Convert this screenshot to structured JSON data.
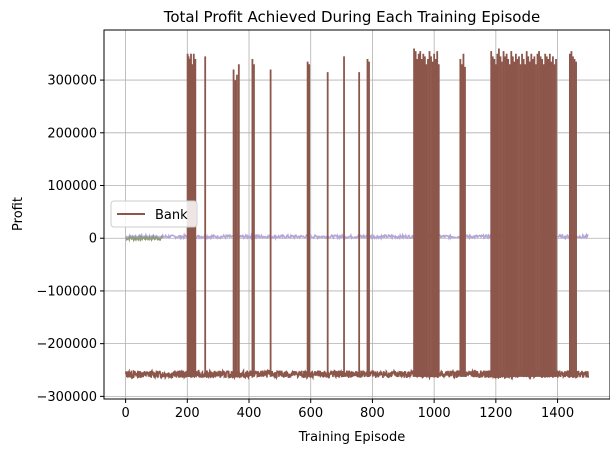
{
  "chart_data": {
    "type": "line",
    "title": "Total Profit Achieved During Each Training Episode",
    "xlabel": "Training Episode",
    "ylabel": "Profit",
    "xlim": [
      -70,
      1570
    ],
    "ylim": [
      -305000,
      395000
    ],
    "grid": true,
    "legend_position": "center-left",
    "x_ticks": [
      0,
      200,
      400,
      600,
      800,
      1000,
      1200,
      1400
    ],
    "x_tick_labels": [
      "0",
      "200",
      "400",
      "600",
      "800",
      "1000",
      "1200",
      "1400"
    ],
    "y_ticks": [
      -300000,
      -200000,
      -100000,
      0,
      100000,
      200000,
      300000
    ],
    "y_tick_labels": [
      "−300000",
      "−200000",
      "−100000",
      "0",
      "100000",
      "200000",
      "300000"
    ],
    "series": [
      {
        "name": "Bank",
        "color": "#8c564b",
        "baseline": -258000,
        "x_range": [
          0,
          1500
        ],
        "spike_episodes": [
          201,
          204,
          208,
          212,
          216,
          221,
          226,
          258,
          350,
          356,
          361,
          367,
          411,
          416,
          470,
          590,
          595,
          655,
          708,
          757,
          784,
          789,
          935,
          940,
          945,
          950,
          955,
          960,
          965,
          970,
          975,
          980,
          985,
          990,
          995,
          1000,
          1005,
          1010,
          1015,
          1085,
          1090,
          1095,
          1100,
          1185,
          1190,
          1195,
          1200,
          1205,
          1210,
          1215,
          1220,
          1225,
          1230,
          1235,
          1240,
          1245,
          1250,
          1255,
          1260,
          1265,
          1270,
          1275,
          1280,
          1285,
          1290,
          1295,
          1300,
          1305,
          1310,
          1315,
          1320,
          1325,
          1330,
          1335,
          1340,
          1345,
          1350,
          1355,
          1360,
          1365,
          1370,
          1375,
          1380,
          1385,
          1390,
          1395,
          1440,
          1445,
          1450,
          1455,
          1460
        ],
        "spike_values": [
          350000,
          345000,
          340000,
          350000,
          330000,
          350000,
          340000,
          345000,
          320000,
          300000,
          310000,
          330000,
          340000,
          330000,
          320000,
          335000,
          330000,
          315000,
          345000,
          315000,
          340000,
          335000,
          360000,
          355000,
          340000,
          350000,
          355000,
          340000,
          350000,
          345000,
          330000,
          340000,
          355000,
          345000,
          335000,
          350000,
          340000,
          355000,
          330000,
          340000,
          330000,
          350000,
          325000,
          355000,
          345000,
          340000,
          330000,
          350000,
          360000,
          345000,
          335000,
          355000,
          345000,
          350000,
          340000,
          330000,
          355000,
          345000,
          335000,
          350000,
          340000,
          345000,
          330000,
          350000,
          340000,
          330000,
          355000,
          345000,
          335000,
          350000,
          340000,
          345000,
          330000,
          350000,
          355000,
          345000,
          340000,
          330000,
          350000,
          345000,
          340000,
          350000,
          335000,
          345000,
          330000,
          340000,
          350000,
          355000,
          345000,
          340000,
          335000
        ]
      },
      {
        "name": "",
        "color": "#b4a7d6",
        "baseline": 3000,
        "x_range": [
          0,
          1500
        ]
      },
      {
        "name": "",
        "color": "#8c9c7a",
        "baseline": 0,
        "x_range": [
          0,
          120
        ]
      }
    ]
  },
  "legend": {
    "entries": [
      {
        "label": "Bank",
        "color": "#8c564b"
      }
    ]
  }
}
